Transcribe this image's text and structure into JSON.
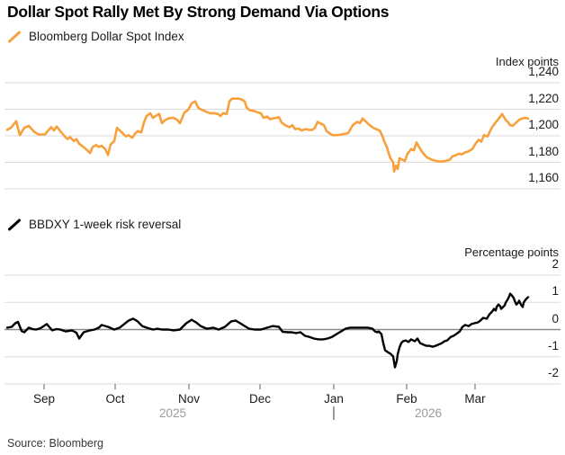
{
  "header": {
    "title": "Dollar Spot Rally Met By Strong Demand Via Options"
  },
  "source_label": "Source: Bloomberg",
  "colors": {
    "dollar_index_line": "#F8A03C",
    "risk_reversal_line": "#000000",
    "gridline": "#dbdbdb",
    "zero_line": "#8c8c8c",
    "axis_tick": "#8c8c8c",
    "year_text": "#9b9b9b"
  },
  "x_axis": {
    "months": [
      {
        "label": "Sep",
        "t": 0.067
      },
      {
        "label": "Oct",
        "t": 0.1961
      },
      {
        "label": "Nov",
        "t": 0.3301
      },
      {
        "label": "Dec",
        "t": 0.4592
      },
      {
        "label": "Jan",
        "t": 0.5931
      },
      {
        "label": "Feb",
        "t": 0.7255
      },
      {
        "label": "Mar",
        "t": 0.8497
      }
    ],
    "years": [
      {
        "label": "2025",
        "t": 0.3007
      },
      {
        "label": "2026",
        "t": 0.7647
      }
    ],
    "year_divider_t": 0.5931
  },
  "chart_data": [
    {
      "type": "line",
      "legend": "Bloomberg Dollar Spot Index",
      "unit_label": "Index points",
      "ylim": [
        1160,
        1240
      ],
      "grid": true,
      "legend_position": "top-left",
      "yticks": [
        {
          "v": 1240,
          "label": "1,240"
        },
        {
          "v": 1220,
          "label": "1,220"
        },
        {
          "v": 1200,
          "label": "1,200"
        },
        {
          "v": 1180,
          "label": "1,180"
        },
        {
          "v": 1160,
          "label": "1,160"
        }
      ],
      "points": [
        [
          0.0,
          1204.5
        ],
        [
          0.0065,
          1206
        ],
        [
          0.0163,
          1211
        ],
        [
          0.0229,
          1200.5
        ],
        [
          0.031,
          1206
        ],
        [
          0.0392,
          1207.5
        ],
        [
          0.049,
          1203
        ],
        [
          0.0572,
          1201
        ],
        [
          0.0686,
          1201
        ],
        [
          0.0735,
          1203.5
        ],
        [
          0.08,
          1206.5
        ],
        [
          0.085,
          1204
        ],
        [
          0.0899,
          1207
        ],
        [
          0.0964,
          1203.5
        ],
        [
          0.1046,
          1199.5
        ],
        [
          0.1095,
          1197.5
        ],
        [
          0.1144,
          1199
        ],
        [
          0.1209,
          1196
        ],
        [
          0.1258,
          1197.5
        ],
        [
          0.1307,
          1194
        ],
        [
          0.1373,
          1192
        ],
        [
          0.1454,
          1189
        ],
        [
          0.1503,
          1187
        ],
        [
          0.1552,
          1191.5
        ],
        [
          0.1618,
          1193
        ],
        [
          0.1667,
          1191.5
        ],
        [
          0.1716,
          1192.5
        ],
        [
          0.1781,
          1190
        ],
        [
          0.183,
          1185.5
        ],
        [
          0.1879,
          1193.5
        ],
        [
          0.1944,
          1196
        ],
        [
          0.1993,
          1206
        ],
        [
          0.2042,
          1204
        ],
        [
          0.2108,
          1201.5
        ],
        [
          0.2157,
          1199.5
        ],
        [
          0.2206,
          1200.5
        ],
        [
          0.2271,
          1198.5
        ],
        [
          0.232,
          1201.5
        ],
        [
          0.2369,
          1203.5
        ],
        [
          0.2435,
          1202.5
        ],
        [
          0.2484,
          1210
        ],
        [
          0.2533,
          1215
        ],
        [
          0.2598,
          1217
        ],
        [
          0.2647,
          1213.5
        ],
        [
          0.2696,
          1215
        ],
        [
          0.2761,
          1216.5
        ],
        [
          0.281,
          1209.5
        ],
        [
          0.2859,
          1211.5
        ],
        [
          0.2925,
          1213
        ],
        [
          0.2974,
          1213.5
        ],
        [
          0.3023,
          1213.5
        ],
        [
          0.3088,
          1212
        ],
        [
          0.3137,
          1209.5
        ],
        [
          0.3219,
          1217.5
        ],
        [
          0.3284,
          1219.5
        ],
        [
          0.335,
          1224.5
        ],
        [
          0.3415,
          1226
        ],
        [
          0.3464,
          1221.5
        ],
        [
          0.3513,
          1220
        ],
        [
          0.3595,
          1218.5
        ],
        [
          0.3676,
          1217
        ],
        [
          0.3758,
          1217
        ],
        [
          0.3824,
          1216.5
        ],
        [
          0.3873,
          1215
        ],
        [
          0.3922,
          1217
        ],
        [
          0.3987,
          1216.5
        ],
        [
          0.4036,
          1226
        ],
        [
          0.4085,
          1228
        ],
        [
          0.4199,
          1228
        ],
        [
          0.4248,
          1227.5
        ],
        [
          0.4314,
          1226
        ],
        [
          0.4346,
          1221.5
        ],
        [
          0.4395,
          1219.5
        ],
        [
          0.4444,
          1219
        ],
        [
          0.4493,
          1218.5
        ],
        [
          0.4559,
          1217.5
        ],
        [
          0.4608,
          1217
        ],
        [
          0.4657,
          1213.5
        ],
        [
          0.4722,
          1214.5
        ],
        [
          0.4771,
          1212.5
        ],
        [
          0.482,
          1213
        ],
        [
          0.4886,
          1213.5
        ],
        [
          0.4935,
          1214
        ],
        [
          0.4984,
          1210
        ],
        [
          0.5049,
          1208
        ],
        [
          0.5098,
          1207
        ],
        [
          0.5131,
          1206.5
        ],
        [
          0.518,
          1208
        ],
        [
          0.5229,
          1205
        ],
        [
          0.5294,
          1205.5
        ],
        [
          0.5343,
          1204
        ],
        [
          0.5425,
          1205
        ],
        [
          0.5474,
          1204.5
        ],
        [
          0.5539,
          1204.5
        ],
        [
          0.5588,
          1206
        ],
        [
          0.5637,
          1210.5
        ],
        [
          0.5703,
          1209
        ],
        [
          0.5752,
          1208
        ],
        [
          0.5801,
          1203.5
        ],
        [
          0.5866,
          1201.5
        ],
        [
          0.5915,
          1200.5
        ],
        [
          0.5997,
          1200.5
        ],
        [
          0.6078,
          1201
        ],
        [
          0.6127,
          1201.5
        ],
        [
          0.6193,
          1202
        ],
        [
          0.6275,
          1208
        ],
        [
          0.6356,
          1210.5
        ],
        [
          0.6405,
          1209.5
        ],
        [
          0.6454,
          1213
        ],
        [
          0.652,
          1210.5
        ],
        [
          0.6569,
          1208.5
        ],
        [
          0.665,
          1206
        ],
        [
          0.6699,
          1205
        ],
        [
          0.6765,
          1204
        ],
        [
          0.6814,
          1200
        ],
        [
          0.6846,
          1196
        ],
        [
          0.6895,
          1191.5
        ],
        [
          0.6928,
          1187
        ],
        [
          0.696,
          1183
        ],
        [
          0.7009,
          1180
        ],
        [
          0.7026,
          1173
        ],
        [
          0.7059,
          1177.5
        ],
        [
          0.7092,
          1175
        ],
        [
          0.7124,
          1183
        ],
        [
          0.7173,
          1182
        ],
        [
          0.7222,
          1181
        ],
        [
          0.7271,
          1186.5
        ],
        [
          0.7337,
          1190
        ],
        [
          0.7386,
          1189
        ],
        [
          0.7435,
          1195
        ],
        [
          0.7467,
          1192.5
        ],
        [
          0.7516,
          1189
        ],
        [
          0.7582,
          1185.5
        ],
        [
          0.7631,
          1183.5
        ],
        [
          0.7712,
          1182
        ],
        [
          0.7794,
          1181
        ],
        [
          0.7876,
          1180.5
        ],
        [
          0.7958,
          1181
        ],
        [
          0.8039,
          1182
        ],
        [
          0.8088,
          1184.5
        ],
        [
          0.8154,
          1185.5
        ],
        [
          0.8203,
          1186.5
        ],
        [
          0.8252,
          1186
        ],
        [
          0.8317,
          1187.5
        ],
        [
          0.8366,
          1188
        ],
        [
          0.8448,
          1190
        ],
        [
          0.8497,
          1193.5
        ],
        [
          0.8562,
          1197
        ],
        [
          0.8611,
          1195.5
        ],
        [
          0.866,
          1200.5
        ],
        [
          0.8725,
          1199.5
        ],
        [
          0.8775,
          1204
        ],
        [
          0.8824,
          1207.5
        ],
        [
          0.8889,
          1211
        ],
        [
          0.8938,
          1213.5
        ],
        [
          0.8987,
          1216.5
        ],
        [
          0.9052,
          1212
        ],
        [
          0.9101,
          1210
        ],
        [
          0.9134,
          1208
        ],
        [
          0.9183,
          1207.5
        ],
        [
          0.9232,
          1209.5
        ],
        [
          0.9297,
          1212
        ],
        [
          0.9346,
          1213
        ],
        [
          0.9412,
          1213.5
        ],
        [
          0.9461,
          1213
        ]
      ]
    },
    {
      "type": "line",
      "legend": "BBDXY 1-week risk reversal",
      "unit_label": "Percentage points",
      "ylim": [
        -2,
        2
      ],
      "grid": true,
      "legend_position": "top-left",
      "zero_line": true,
      "yticks": [
        {
          "v": 2,
          "label": "2"
        },
        {
          "v": 1,
          "label": "1"
        },
        {
          "v": 0,
          "label": "0"
        },
        {
          "v": -1,
          "label": "-1"
        },
        {
          "v": -2,
          "label": "-2"
        }
      ],
      "points": [
        [
          0.0,
          0.07
        ],
        [
          0.0082,
          0.1
        ],
        [
          0.0147,
          0.23
        ],
        [
          0.0196,
          0.28
        ],
        [
          0.0261,
          -0.05
        ],
        [
          0.031,
          -0.1
        ],
        [
          0.0392,
          0.07
        ],
        [
          0.0458,
          0.02
        ],
        [
          0.0523,
          0.0
        ],
        [
          0.0605,
          0.05
        ],
        [
          0.0719,
          0.2
        ],
        [
          0.0817,
          -0.03
        ],
        [
          0.0899,
          0.02
        ],
        [
          0.0964,
          0.0
        ],
        [
          0.1062,
          -0.07
        ],
        [
          0.1176,
          -0.03
        ],
        [
          0.1258,
          -0.12
        ],
        [
          0.1307,
          -0.33
        ],
        [
          0.1389,
          -0.1
        ],
        [
          0.1503,
          -0.03
        ],
        [
          0.1585,
          0.0
        ],
        [
          0.1667,
          0.07
        ],
        [
          0.1716,
          0.17
        ],
        [
          0.183,
          0.1
        ],
        [
          0.1944,
          0.0
        ],
        [
          0.2042,
          0.07
        ],
        [
          0.2124,
          0.2
        ],
        [
          0.2206,
          0.33
        ],
        [
          0.2288,
          0.4
        ],
        [
          0.2369,
          0.3
        ],
        [
          0.2451,
          0.13
        ],
        [
          0.2533,
          0.07
        ],
        [
          0.2647,
          0.0
        ],
        [
          0.2729,
          0.03
        ],
        [
          0.281,
          0.0
        ],
        [
          0.2925,
          0.0
        ],
        [
          0.3023,
          -0.03
        ],
        [
          0.3137,
          0.0
        ],
        [
          0.3252,
          0.23
        ],
        [
          0.335,
          0.36
        ],
        [
          0.3431,
          0.26
        ],
        [
          0.3513,
          0.13
        ],
        [
          0.3627,
          0.03
        ],
        [
          0.3742,
          0.07
        ],
        [
          0.384,
          0.0
        ],
        [
          0.3954,
          0.1
        ],
        [
          0.4069,
          0.3
        ],
        [
          0.415,
          0.33
        ],
        [
          0.4232,
          0.23
        ],
        [
          0.4314,
          0.13
        ],
        [
          0.4395,
          0.03
        ],
        [
          0.4493,
          0.0
        ],
        [
          0.4608,
          0.0
        ],
        [
          0.4722,
          0.07
        ],
        [
          0.482,
          0.13
        ],
        [
          0.4935,
          0.1
        ],
        [
          0.5,
          -0.08
        ],
        [
          0.5098,
          -0.1
        ],
        [
          0.5163,
          -0.1
        ],
        [
          0.5245,
          -0.13
        ],
        [
          0.5327,
          -0.1
        ],
        [
          0.5408,
          -0.23
        ],
        [
          0.549,
          -0.27
        ],
        [
          0.5572,
          -0.33
        ],
        [
          0.5654,
          -0.36
        ],
        [
          0.5735,
          -0.36
        ],
        [
          0.5817,
          -0.33
        ],
        [
          0.5899,
          -0.27
        ],
        [
          0.598,
          -0.17
        ],
        [
          0.6062,
          -0.07
        ],
        [
          0.6144,
          0.03
        ],
        [
          0.6225,
          0.07
        ],
        [
          0.6307,
          0.07
        ],
        [
          0.6389,
          0.07
        ],
        [
          0.6471,
          0.07
        ],
        [
          0.6552,
          0.07
        ],
        [
          0.6634,
          0.03
        ],
        [
          0.6683,
          -0.07
        ],
        [
          0.6716,
          -0.1
        ],
        [
          0.6748,
          -0.07
        ],
        [
          0.6797,
          -0.17
        ],
        [
          0.683,
          -0.5
        ],
        [
          0.6863,
          -0.76
        ],
        [
          0.6912,
          -0.83
        ],
        [
          0.696,
          -0.89
        ],
        [
          0.7009,
          -0.99
        ],
        [
          0.7042,
          -1.39
        ],
        [
          0.7075,
          -1.16
        ],
        [
          0.7092,
          -0.92
        ],
        [
          0.7124,
          -0.66
        ],
        [
          0.7157,
          -0.5
        ],
        [
          0.719,
          -0.43
        ],
        [
          0.7239,
          -0.4
        ],
        [
          0.7288,
          -0.46
        ],
        [
          0.7337,
          -0.36
        ],
        [
          0.7402,
          -0.43
        ],
        [
          0.7451,
          -0.33
        ],
        [
          0.75,
          -0.5
        ],
        [
          0.7565,
          -0.56
        ],
        [
          0.7614,
          -0.6
        ],
        [
          0.7663,
          -0.6
        ],
        [
          0.7729,
          -0.63
        ],
        [
          0.7778,
          -0.6
        ],
        [
          0.7827,
          -0.56
        ],
        [
          0.7892,
          -0.5
        ],
        [
          0.7941,
          -0.43
        ],
        [
          0.799,
          -0.4
        ],
        [
          0.8056,
          -0.27
        ],
        [
          0.8105,
          -0.23
        ],
        [
          0.8154,
          -0.17
        ],
        [
          0.8219,
          -0.07
        ],
        [
          0.8268,
          0.1
        ],
        [
          0.8317,
          0.17
        ],
        [
          0.8382,
          0.13
        ],
        [
          0.8431,
          0.2
        ],
        [
          0.848,
          0.23
        ],
        [
          0.8546,
          0.26
        ],
        [
          0.8595,
          0.33
        ],
        [
          0.8644,
          0.43
        ],
        [
          0.871,
          0.4
        ],
        [
          0.8758,
          0.56
        ],
        [
          0.8807,
          0.66
        ],
        [
          0.884,
          0.76
        ],
        [
          0.8873,
          0.7
        ],
        [
          0.8889,
          0.83
        ],
        [
          0.8922,
          0.92
        ],
        [
          0.8954,
          0.86
        ],
        [
          0.8971,
          0.76
        ],
        [
          0.9036,
          0.89
        ],
        [
          0.9052,
          0.99
        ],
        [
          0.9085,
          1.09
        ],
        [
          0.9118,
          1.22
        ],
        [
          0.9134,
          1.32
        ],
        [
          0.9167,
          1.25
        ],
        [
          0.9199,
          1.16
        ],
        [
          0.9216,
          1.06
        ],
        [
          0.9248,
          0.92
        ],
        [
          0.9281,
          0.99
        ],
        [
          0.9297,
          1.06
        ],
        [
          0.933,
          0.92
        ],
        [
          0.9363,
          0.83
        ],
        [
          0.9379,
          0.99
        ],
        [
          0.9412,
          1.09
        ],
        [
          0.9444,
          1.16
        ],
        [
          0.9461,
          1.19
        ]
      ]
    }
  ]
}
